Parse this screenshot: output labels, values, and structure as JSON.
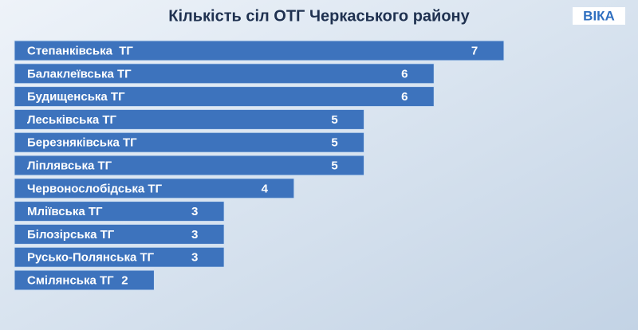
{
  "chart_data": {
    "type": "bar",
    "orientation": "horizontal",
    "title": "Кількість сіл ОТГ Черкаського району",
    "logo": "ВІКА",
    "categories": [
      "Степанківська  ТГ",
      "Балаклеївська ТГ",
      "Будищенська ТГ",
      "Леськівська ТГ",
      "Березняківська ТГ",
      "Ліплявська ТГ",
      "Червонослобідська ТГ",
      "Мліївська ТГ",
      "Білозірська ТГ",
      "Русько-Полянська ТГ",
      "Смілянська ТГ"
    ],
    "values": [
      7,
      6,
      6,
      5,
      5,
      5,
      4,
      3,
      3,
      3,
      2
    ],
    "color": "#3d73bd"
  }
}
